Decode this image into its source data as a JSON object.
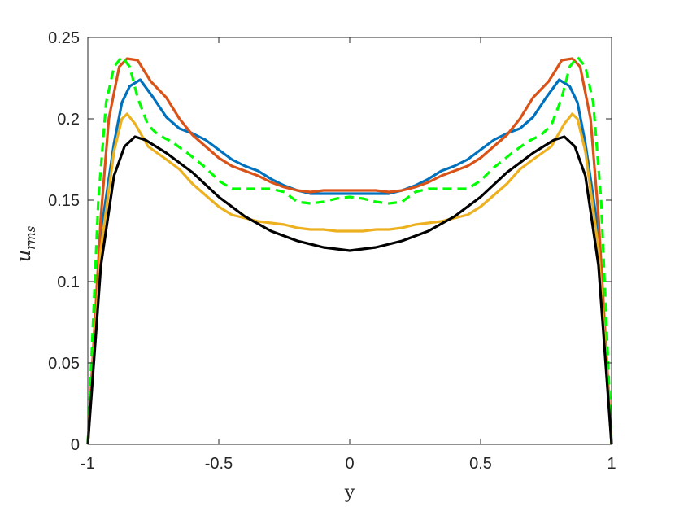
{
  "chart_data": {
    "type": "line",
    "title": "",
    "xlabel": "y",
    "ylabel": {
      "base": "u",
      "sub": "rms"
    },
    "xlim": [
      -1,
      1
    ],
    "ylim": [
      0,
      0.25
    ],
    "xticks": [
      -1,
      -0.5,
      0,
      0.5,
      1
    ],
    "xtick_labels": [
      "-1",
      "-0.5",
      "0",
      "0.5",
      "1"
    ],
    "yticks": [
      0,
      0.05,
      0.1,
      0.15,
      0.2,
      0.25
    ],
    "ytick_labels": [
      "0",
      "0.05",
      "0.1",
      "0.15",
      "0.2",
      "0.25"
    ],
    "grid": false,
    "series": [
      {
        "color": "#0072bd",
        "dash": "solid",
        "points": [
          [
            -1,
            0
          ],
          [
            -0.95,
            0.13
          ],
          [
            -0.9,
            0.185
          ],
          [
            -0.87,
            0.21
          ],
          [
            -0.84,
            0.22
          ],
          [
            -0.8,
            0.224
          ],
          [
            -0.75,
            0.213
          ],
          [
            -0.7,
            0.201
          ],
          [
            -0.65,
            0.194
          ],
          [
            -0.6,
            0.191
          ],
          [
            -0.55,
            0.187
          ],
          [
            -0.5,
            0.181
          ],
          [
            -0.45,
            0.175
          ],
          [
            -0.4,
            0.171
          ],
          [
            -0.35,
            0.168
          ],
          [
            -0.3,
            0.163
          ],
          [
            -0.25,
            0.159
          ],
          [
            -0.2,
            0.156
          ],
          [
            -0.15,
            0.154
          ],
          [
            -0.1,
            0.154
          ],
          [
            -0.05,
            0.154
          ],
          [
            0,
            0.154
          ],
          [
            0.05,
            0.154
          ],
          [
            0.1,
            0.154
          ],
          [
            0.15,
            0.154
          ],
          [
            0.2,
            0.156
          ],
          [
            0.25,
            0.159
          ],
          [
            0.3,
            0.163
          ],
          [
            0.35,
            0.168
          ],
          [
            0.4,
            0.171
          ],
          [
            0.45,
            0.175
          ],
          [
            0.5,
            0.181
          ],
          [
            0.55,
            0.187
          ],
          [
            0.6,
            0.191
          ],
          [
            0.65,
            0.194
          ],
          [
            0.7,
            0.201
          ],
          [
            0.75,
            0.213
          ],
          [
            0.8,
            0.224
          ],
          [
            0.84,
            0.22
          ],
          [
            0.87,
            0.21
          ],
          [
            0.9,
            0.185
          ],
          [
            0.95,
            0.13
          ],
          [
            1,
            0
          ]
        ]
      },
      {
        "color": "#d95319",
        "dash": "solid",
        "points": [
          [
            -1,
            0
          ],
          [
            -0.95,
            0.14
          ],
          [
            -0.92,
            0.2
          ],
          [
            -0.88,
            0.232
          ],
          [
            -0.85,
            0.237
          ],
          [
            -0.81,
            0.236
          ],
          [
            -0.76,
            0.223
          ],
          [
            -0.7,
            0.213
          ],
          [
            -0.65,
            0.2
          ],
          [
            -0.6,
            0.19
          ],
          [
            -0.55,
            0.183
          ],
          [
            -0.5,
            0.176
          ],
          [
            -0.45,
            0.171
          ],
          [
            -0.4,
            0.168
          ],
          [
            -0.35,
            0.165
          ],
          [
            -0.3,
            0.161
          ],
          [
            -0.25,
            0.158
          ],
          [
            -0.2,
            0.156
          ],
          [
            -0.15,
            0.155
          ],
          [
            -0.1,
            0.156
          ],
          [
            -0.05,
            0.156
          ],
          [
            0,
            0.156
          ],
          [
            0.05,
            0.156
          ],
          [
            0.1,
            0.156
          ],
          [
            0.15,
            0.155
          ],
          [
            0.2,
            0.156
          ],
          [
            0.25,
            0.158
          ],
          [
            0.3,
            0.161
          ],
          [
            0.35,
            0.165
          ],
          [
            0.4,
            0.168
          ],
          [
            0.45,
            0.171
          ],
          [
            0.5,
            0.176
          ],
          [
            0.55,
            0.183
          ],
          [
            0.6,
            0.19
          ],
          [
            0.65,
            0.2
          ],
          [
            0.7,
            0.213
          ],
          [
            0.76,
            0.223
          ],
          [
            0.81,
            0.236
          ],
          [
            0.85,
            0.237
          ],
          [
            0.88,
            0.232
          ],
          [
            0.92,
            0.2
          ],
          [
            0.95,
            0.14
          ],
          [
            1,
            0
          ]
        ]
      },
      {
        "color": "#edb120",
        "dash": "solid",
        "points": [
          [
            -1,
            0
          ],
          [
            -0.95,
            0.12
          ],
          [
            -0.9,
            0.18
          ],
          [
            -0.87,
            0.2
          ],
          [
            -0.85,
            0.203
          ],
          [
            -0.82,
            0.197
          ],
          [
            -0.77,
            0.183
          ],
          [
            -0.7,
            0.175
          ],
          [
            -0.65,
            0.169
          ],
          [
            -0.6,
            0.16
          ],
          [
            -0.55,
            0.153
          ],
          [
            -0.5,
            0.146
          ],
          [
            -0.45,
            0.141
          ],
          [
            -0.4,
            0.139
          ],
          [
            -0.35,
            0.137
          ],
          [
            -0.3,
            0.136
          ],
          [
            -0.25,
            0.135
          ],
          [
            -0.2,
            0.133
          ],
          [
            -0.15,
            0.132
          ],
          [
            -0.1,
            0.132
          ],
          [
            -0.05,
            0.131
          ],
          [
            0,
            0.131
          ],
          [
            0.05,
            0.131
          ],
          [
            0.1,
            0.132
          ],
          [
            0.15,
            0.132
          ],
          [
            0.2,
            0.133
          ],
          [
            0.25,
            0.135
          ],
          [
            0.3,
            0.136
          ],
          [
            0.35,
            0.137
          ],
          [
            0.4,
            0.139
          ],
          [
            0.45,
            0.141
          ],
          [
            0.5,
            0.146
          ],
          [
            0.55,
            0.153
          ],
          [
            0.6,
            0.16
          ],
          [
            0.65,
            0.169
          ],
          [
            0.7,
            0.175
          ],
          [
            0.77,
            0.183
          ],
          [
            0.82,
            0.197
          ],
          [
            0.85,
            0.203
          ],
          [
            0.87,
            0.2
          ],
          [
            0.9,
            0.18
          ],
          [
            0.95,
            0.12
          ],
          [
            1,
            0
          ]
        ]
      },
      {
        "color": "#00ff00",
        "dash": "dashed",
        "points": [
          [
            -1,
            0
          ],
          [
            -0.96,
            0.15
          ],
          [
            -0.93,
            0.21
          ],
          [
            -0.9,
            0.232
          ],
          [
            -0.87,
            0.238
          ],
          [
            -0.84,
            0.232
          ],
          [
            -0.81,
            0.213
          ],
          [
            -0.77,
            0.196
          ],
          [
            -0.73,
            0.19
          ],
          [
            -0.68,
            0.186
          ],
          [
            -0.62,
            0.179
          ],
          [
            -0.55,
            0.17
          ],
          [
            -0.5,
            0.162
          ],
          [
            -0.45,
            0.157
          ],
          [
            -0.4,
            0.157
          ],
          [
            -0.3,
            0.157
          ],
          [
            -0.25,
            0.155
          ],
          [
            -0.2,
            0.149
          ],
          [
            -0.15,
            0.148
          ],
          [
            -0.1,
            0.149
          ],
          [
            -0.05,
            0.151
          ],
          [
            0,
            0.152
          ],
          [
            0.05,
            0.151
          ],
          [
            0.1,
            0.149
          ],
          [
            0.15,
            0.148
          ],
          [
            0.2,
            0.149
          ],
          [
            0.25,
            0.155
          ],
          [
            0.3,
            0.157
          ],
          [
            0.4,
            0.157
          ],
          [
            0.45,
            0.157
          ],
          [
            0.5,
            0.162
          ],
          [
            0.55,
            0.17
          ],
          [
            0.62,
            0.179
          ],
          [
            0.68,
            0.186
          ],
          [
            0.73,
            0.19
          ],
          [
            0.77,
            0.196
          ],
          [
            0.81,
            0.213
          ],
          [
            0.84,
            0.232
          ],
          [
            0.87,
            0.238
          ],
          [
            0.9,
            0.232
          ],
          [
            0.93,
            0.21
          ],
          [
            0.96,
            0.15
          ],
          [
            1,
            0
          ]
        ]
      },
      {
        "color": "#000000",
        "dash": "solid",
        "points": [
          [
            -1,
            0
          ],
          [
            -0.95,
            0.11
          ],
          [
            -0.9,
            0.165
          ],
          [
            -0.86,
            0.183
          ],
          [
            -0.82,
            0.189
          ],
          [
            -0.78,
            0.187
          ],
          [
            -0.7,
            0.179
          ],
          [
            -0.6,
            0.167
          ],
          [
            -0.5,
            0.152
          ],
          [
            -0.4,
            0.14
          ],
          [
            -0.3,
            0.131
          ],
          [
            -0.2,
            0.125
          ],
          [
            -0.1,
            0.121
          ],
          [
            0,
            0.119
          ],
          [
            0.1,
            0.121
          ],
          [
            0.2,
            0.125
          ],
          [
            0.3,
            0.131
          ],
          [
            0.4,
            0.14
          ],
          [
            0.5,
            0.152
          ],
          [
            0.6,
            0.167
          ],
          [
            0.7,
            0.179
          ],
          [
            0.78,
            0.187
          ],
          [
            0.82,
            0.189
          ],
          [
            0.86,
            0.183
          ],
          [
            0.9,
            0.165
          ],
          [
            0.95,
            0.11
          ],
          [
            1,
            0
          ]
        ]
      }
    ]
  }
}
